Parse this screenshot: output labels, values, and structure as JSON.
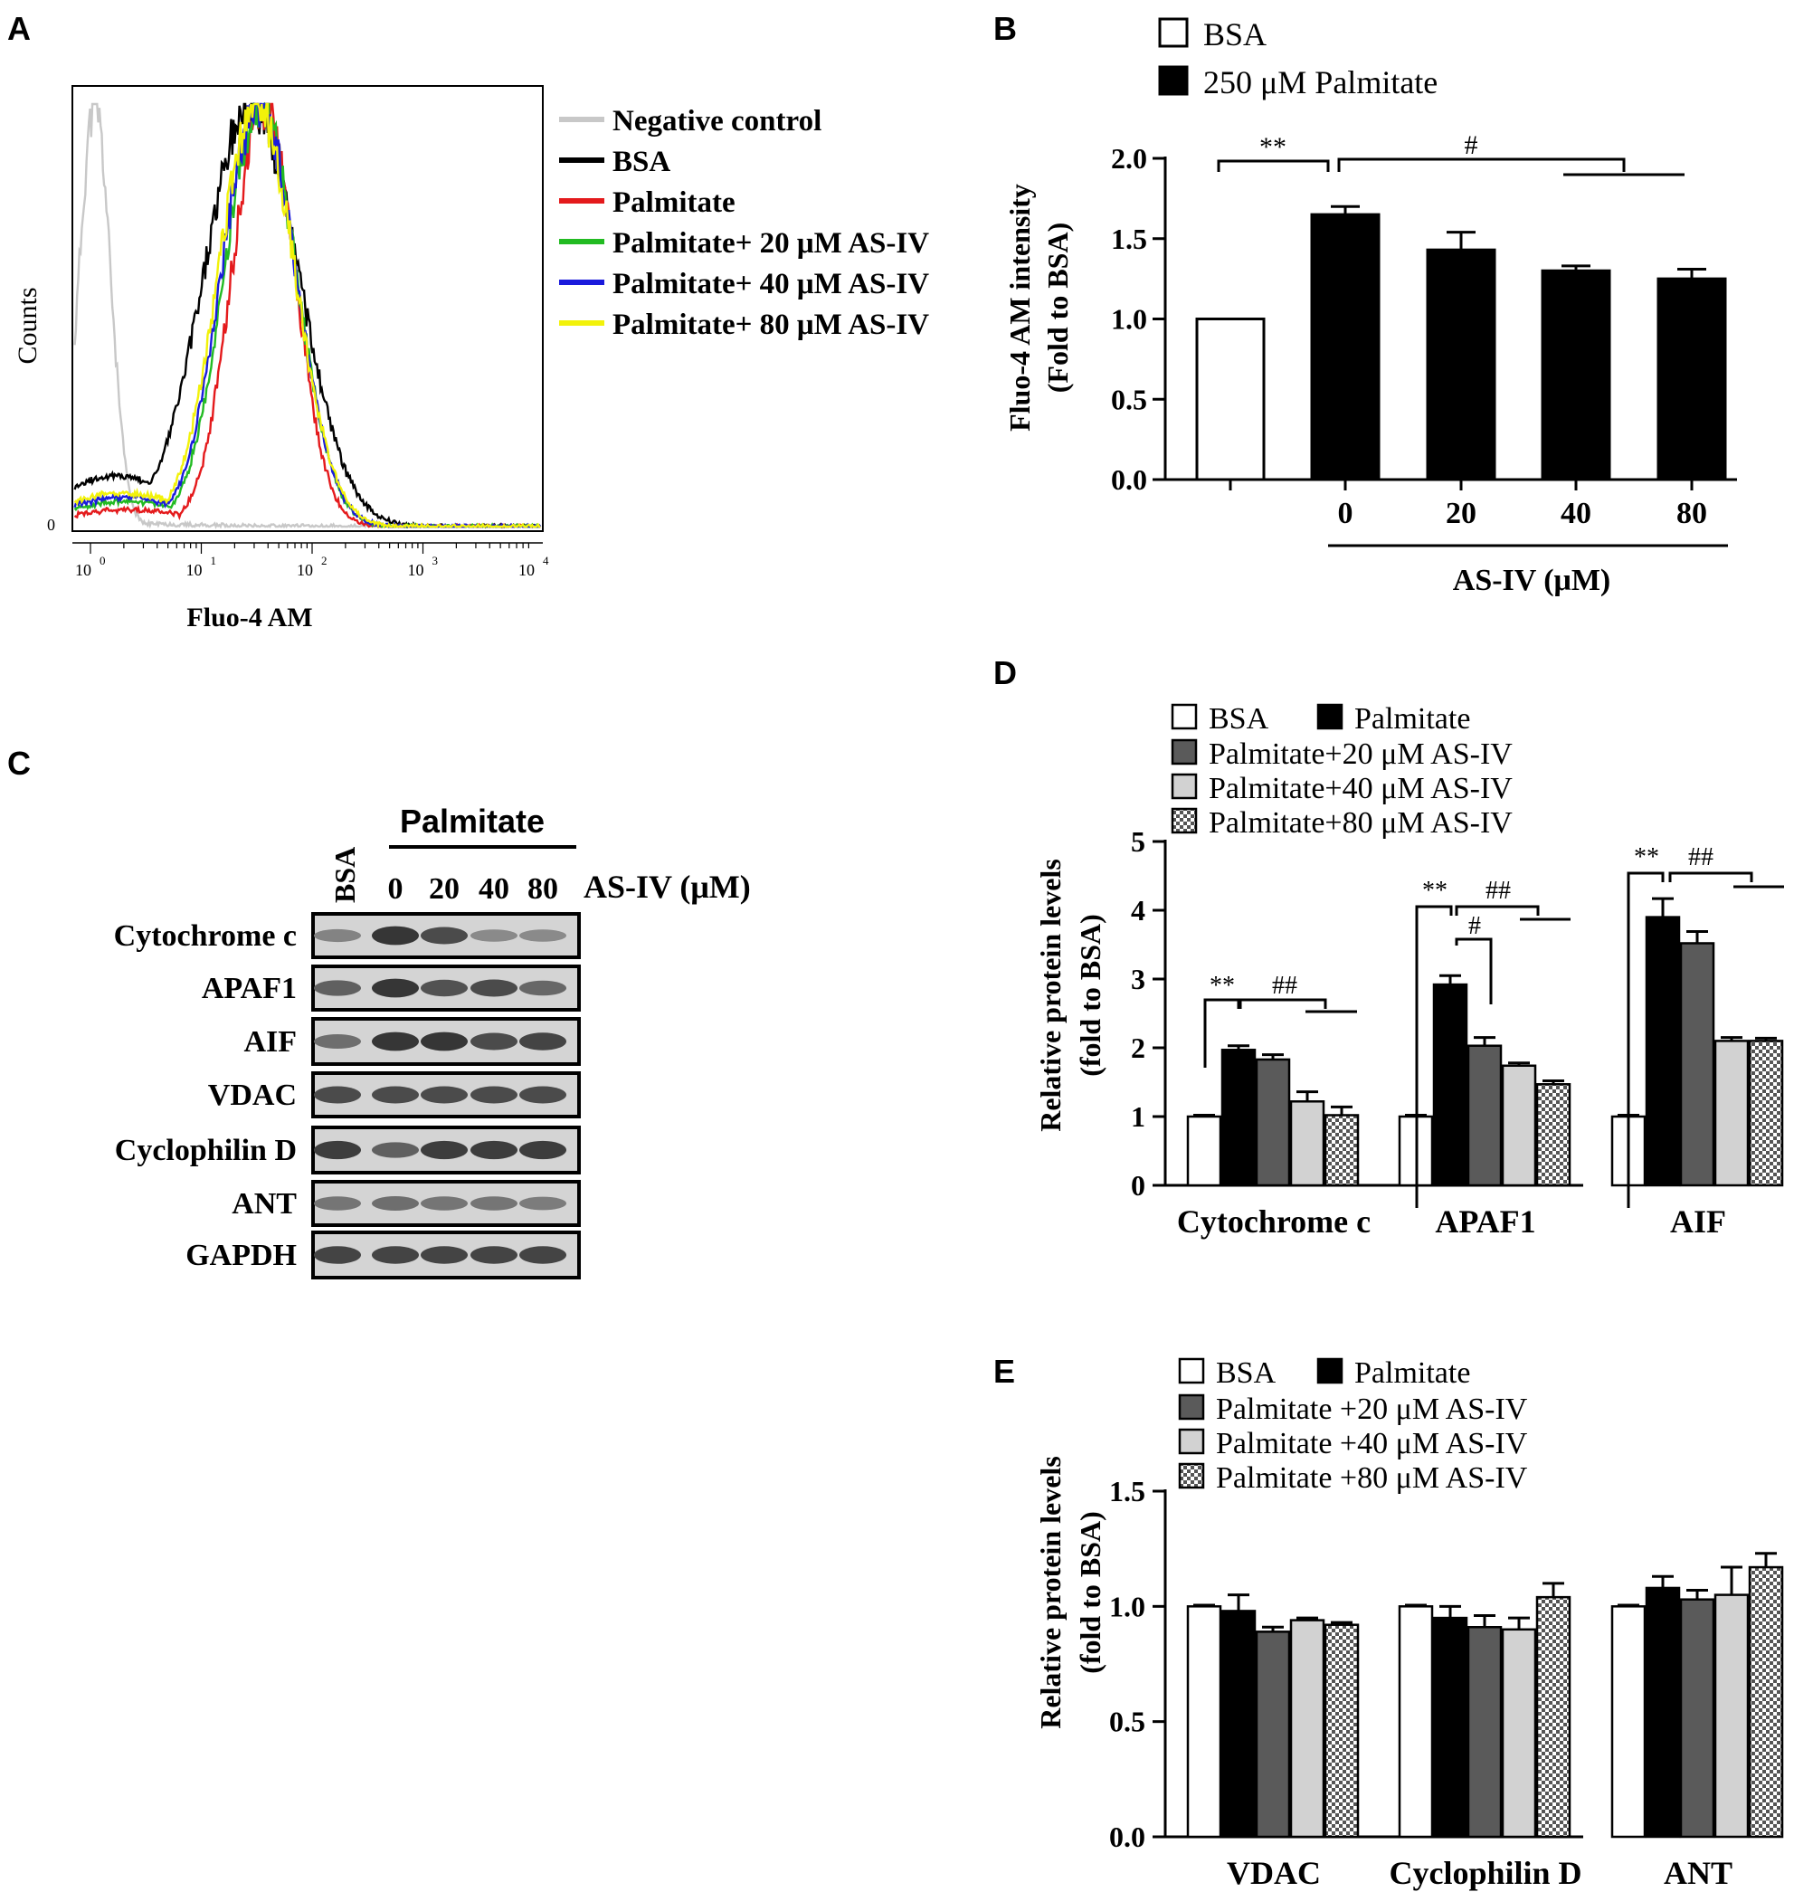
{
  "panels": {
    "A": {
      "letter": "A",
      "chart_data": {
        "type": "line",
        "title": "",
        "xlabel": "Fluo-4 AM",
        "ylabel": "Counts",
        "x_scale": "log",
        "xlim": [
          1,
          10000
        ],
        "ylim": [
          0,
          1
        ],
        "x_tick_labels": [
          "10^0",
          "10^1",
          "10^2",
          "10^3",
          "10^4"
        ],
        "y_tick_labels": [
          "0"
        ],
        "series": [
          {
            "name": "Negative control",
            "color": "#c8c8c8",
            "mode": 1.0,
            "width": 0.14,
            "base": 0.01
          },
          {
            "name": "BSA",
            "color": "#000000",
            "mode": 25,
            "width": 0.42,
            "base": 0.12
          },
          {
            "name": "Palmitate",
            "color": "#e41a1c",
            "mode": 32,
            "width": 0.28,
            "base": 0.04
          },
          {
            "name": "Palmitate+ 20 μM AS-IV",
            "color": "#22bb22",
            "mode": 30,
            "width": 0.32,
            "base": 0.06
          },
          {
            "name": "Palmitate+ 40 μM AS-IV",
            "color": "#1a1adc",
            "mode": 29,
            "width": 0.33,
            "base": 0.07
          },
          {
            "name": "Palmitate+ 80 μM AS-IV",
            "color": "#f2f20a",
            "mode": 28,
            "width": 0.34,
            "base": 0.08
          }
        ]
      }
    },
    "B": {
      "letter": "B",
      "chart_data": {
        "type": "bar",
        "title": "",
        "ylabel_line1": "Fluo-4 AM intensity",
        "ylabel_line2": "(Fold to BSA)",
        "xlabel": "AS-IV (μM)",
        "categories": [
          "",
          "0",
          "20",
          "40",
          "80"
        ],
        "ylim": [
          0,
          2.0
        ],
        "y_ticks": [
          "0.0",
          "0.5",
          "1.0",
          "1.5",
          "2.0"
        ],
        "series": [
          {
            "name": "BSA",
            "values": [
              1.0,
              null,
              null,
              null,
              null
            ],
            "errors": [
              0,
              null,
              null,
              null,
              null
            ]
          },
          {
            "name": "250 μM Palmitate",
            "values": [
              null,
              1.65,
              1.43,
              1.3,
              1.25
            ],
            "errors": [
              null,
              0.05,
              0.11,
              0.03,
              0.06
            ]
          }
        ],
        "annotations": [
          "**",
          "#"
        ]
      }
    },
    "C": {
      "letter": "C",
      "header": "Palmitate",
      "lane_bsa": "BSA",
      "lanes": [
        "0",
        "20",
        "40",
        "80"
      ],
      "lane_unit": "AS-IV (μM)",
      "rows": [
        "Cytochrome c",
        "APAF1",
        "AIF",
        "VDAC",
        "Cyclophilin D",
        "ANT",
        "GAPDH"
      ]
    },
    "D": {
      "letter": "D",
      "chart_data": {
        "type": "bar",
        "ylabel_line1": "Relative protein levels",
        "ylabel_line2": "(fold to BSA)",
        "categories": [
          "Cytochrome c",
          "APAF1",
          "AIF"
        ],
        "ylim": [
          0,
          5
        ],
        "y_ticks": [
          "0",
          "1",
          "2",
          "3",
          "4",
          "5"
        ],
        "series": [
          {
            "name": "BSA",
            "values": [
              1.0,
              1.0,
              1.0
            ],
            "errors": [
              0.02,
              0.02,
              0.02
            ]
          },
          {
            "name": "Palmitate",
            "values": [
              1.97,
              2.92,
              3.9
            ],
            "errors": [
              0.06,
              0.13,
              0.27
            ]
          },
          {
            "name": "Palmitate+20 μM AS-IV",
            "values": [
              1.83,
              2.03,
              3.52
            ],
            "errors": [
              0.07,
              0.12,
              0.17
            ]
          },
          {
            "name": "Palmitate+40 μM AS-IV",
            "values": [
              1.22,
              1.74,
              2.1
            ],
            "errors": [
              0.14,
              0.04,
              0.05
            ]
          },
          {
            "name": "Palmitate+80 μM AS-IV",
            "values": [
              1.02,
              1.47,
              2.1
            ],
            "errors": [
              0.12,
              0.05,
              0.04
            ]
          }
        ],
        "annotations": [
          "**",
          "##",
          "**",
          "##",
          "#",
          "**",
          "##"
        ]
      }
    },
    "E": {
      "letter": "E",
      "chart_data": {
        "type": "bar",
        "ylabel_line1": "Relative protein levels",
        "ylabel_line2": "(fold to BSA)",
        "categories": [
          "VDAC",
          "Cyclophilin D",
          "ANT"
        ],
        "ylim": [
          0,
          1.5
        ],
        "y_ticks": [
          "0.0",
          "0.5",
          "1.0",
          "1.5"
        ],
        "series": [
          {
            "name": "BSA",
            "values": [
              1.0,
              1.0,
              1.0
            ],
            "errors": [
              0.005,
              0.005,
              0.005
            ]
          },
          {
            "name": "Palmitate",
            "values": [
              0.98,
              0.95,
              1.08
            ],
            "errors": [
              0.07,
              0.05,
              0.05
            ]
          },
          {
            "name": "Palmitate +20 μM AS-IV",
            "values": [
              0.89,
              0.91,
              1.03
            ],
            "errors": [
              0.02,
              0.05,
              0.04
            ]
          },
          {
            "name": "Palmitate +40 μM AS-IV",
            "values": [
              0.94,
              0.9,
              1.05
            ],
            "errors": [
              0.01,
              0.05,
              0.12
            ]
          },
          {
            "name": "Palmitate +80 μM AS-IV",
            "values": [
              0.92,
              1.04,
              1.17
            ],
            "errors": [
              0.01,
              0.06,
              0.06
            ]
          }
        ]
      }
    }
  }
}
